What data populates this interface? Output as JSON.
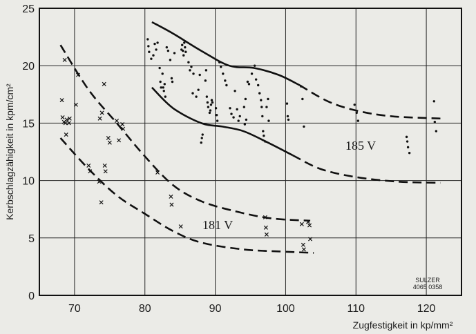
{
  "chart_data": {
    "type": "scatter",
    "xlabel": "Zugfestigkeit in kp/mm²",
    "ylabel": "Kerbschlagzähigkeit in kpm/cm²",
    "xlim": [
      65,
      125
    ],
    "ylim": [
      0,
      25
    ],
    "xticks": [
      "70",
      "80",
      "90",
      "100",
      "110",
      "120"
    ],
    "yticks": [
      "0",
      "5",
      "10",
      "15",
      "20",
      "25"
    ],
    "grid": true,
    "annotations": [
      {
        "text": "185 V",
        "x": 104.5,
        "y": 12.7
      },
      {
        "text": "181 V",
        "x": 86.5,
        "y": 5.9
      }
    ],
    "stamp": {
      "line1": "SULZER",
      "line2": "4065 0358"
    },
    "series": [
      {
        "marker": "x",
        "points": [
          [
            68.2,
            17
          ],
          [
            68.6,
            20.5
          ],
          [
            68.3,
            15.5
          ],
          [
            68.5,
            15.1
          ],
          [
            68.9,
            15.3
          ],
          [
            68.7,
            15
          ],
          [
            68.8,
            14
          ],
          [
            69.2,
            15
          ],
          [
            69.3,
            15.4
          ],
          [
            70.2,
            16.6
          ],
          [
            70.5,
            19.2
          ],
          [
            72,
            11.3
          ],
          [
            72.2,
            10.8
          ],
          [
            73.5,
            9.9
          ],
          [
            73.8,
            8.1
          ],
          [
            74.2,
            18.4
          ],
          [
            73.9,
            15.9
          ],
          [
            73.6,
            15.4
          ],
          [
            74.3,
            11.3
          ],
          [
            74.4,
            10.8
          ],
          [
            74.8,
            13.7
          ],
          [
            75,
            13.3
          ],
          [
            76,
            15.2
          ],
          [
            76.3,
            13.5
          ],
          [
            76.8,
            14.9
          ],
          [
            76.9,
            14.5
          ],
          [
            81.8,
            10.7
          ],
          [
            83.7,
            8.6
          ],
          [
            83.8,
            7.9
          ],
          [
            85.1,
            6
          ],
          [
            97.1,
            6.8
          ],
          [
            97.2,
            5.9
          ],
          [
            97.3,
            5.3
          ],
          [
            102.3,
            6.2
          ],
          [
            102.5,
            4.4
          ],
          [
            102.6,
            4
          ],
          [
            103.2,
            6.4
          ],
          [
            103.4,
            6.1
          ],
          [
            103.5,
            4.9
          ]
        ]
      },
      {
        "marker": "dot",
        "points": [
          [
            80.4,
            22.3
          ],
          [
            80.5,
            21.7
          ],
          [
            80.6,
            21.2
          ],
          [
            80.9,
            20.6
          ],
          [
            81.2,
            20.9
          ],
          [
            81.4,
            21.9
          ],
          [
            81.6,
            21.4
          ],
          [
            81.8,
            22
          ],
          [
            82.1,
            19.8
          ],
          [
            82.2,
            18.6
          ],
          [
            82.3,
            18.1
          ],
          [
            82.5,
            19.3
          ],
          [
            82.6,
            18.1
          ],
          [
            82.7,
            17.8
          ],
          [
            82.8,
            18.4
          ],
          [
            82.9,
            17.3
          ],
          [
            83.1,
            21.6
          ],
          [
            83.3,
            21.3
          ],
          [
            83.6,
            20.5
          ],
          [
            83.8,
            18.9
          ],
          [
            83.9,
            18.6
          ],
          [
            84.2,
            21.1
          ],
          [
            85.2,
            21.4
          ],
          [
            85.3,
            21.8
          ],
          [
            85.4,
            21.3
          ],
          [
            85.5,
            20.9
          ],
          [
            85.6,
            22
          ],
          [
            85.7,
            21.6
          ],
          [
            85.8,
            21.2
          ],
          [
            86.2,
            20.3
          ],
          [
            86.4,
            19.6
          ],
          [
            86.6,
            19.9
          ],
          [
            86.8,
            17.6
          ],
          [
            86.9,
            19.3
          ],
          [
            87.3,
            17.3
          ],
          [
            87.6,
            17.9
          ],
          [
            87.8,
            19.2
          ],
          [
            88.0,
            13.3
          ],
          [
            88.1,
            13.7
          ],
          [
            88.2,
            14
          ],
          [
            88.6,
            18.7
          ],
          [
            88.7,
            19.6
          ],
          [
            88.8,
            17.3
          ],
          [
            88.9,
            16.8
          ],
          [
            89.0,
            16.4
          ],
          [
            89.2,
            15.9
          ],
          [
            89.3,
            16.1
          ],
          [
            89.4,
            16.6
          ],
          [
            89.5,
            17
          ],
          [
            89.6,
            16.8
          ],
          [
            90.1,
            16.3
          ],
          [
            90.2,
            15.7
          ],
          [
            90.3,
            15.2
          ],
          [
            90.6,
            20.3
          ],
          [
            90.8,
            19.9
          ],
          [
            91.1,
            19.3
          ],
          [
            91.4,
            18.7
          ],
          [
            91.6,
            18.3
          ],
          [
            92.1,
            16.3
          ],
          [
            92.3,
            15.8
          ],
          [
            92.6,
            15.5
          ],
          [
            92.8,
            17.8
          ],
          [
            93.1,
            16.2
          ],
          [
            93.3,
            15.2
          ],
          [
            93.5,
            15.6
          ],
          [
            94.2,
            14.9
          ],
          [
            94.4,
            15.3
          ],
          [
            94.1,
            16.4
          ],
          [
            94.3,
            17.1
          ],
          [
            94.6,
            18.6
          ],
          [
            94.8,
            18.4
          ],
          [
            95.2,
            19.3
          ],
          [
            95.6,
            20
          ],
          [
            95.8,
            18.8
          ],
          [
            96.1,
            18.3
          ],
          [
            96.3,
            17.6
          ],
          [
            96.5,
            17
          ],
          [
            96.6,
            16.4
          ],
          [
            96.7,
            15.6
          ],
          [
            96.8,
            14.3
          ],
          [
            96.9,
            13.9
          ],
          [
            97.1,
            13.4
          ],
          [
            97.3,
            16.4
          ],
          [
            97.5,
            17.1
          ],
          [
            97.6,
            15.2
          ],
          [
            100.2,
            16.7
          ],
          [
            100.3,
            15.6
          ],
          [
            100.4,
            15.3
          ],
          [
            102.2,
            18.2
          ],
          [
            102.4,
            17.1
          ],
          [
            102.6,
            14.7
          ],
          [
            109.8,
            16.6
          ],
          [
            110.1,
            15.9
          ],
          [
            110.3,
            15.2
          ],
          [
            117.2,
            13.8
          ],
          [
            117.3,
            13.4
          ],
          [
            117.4,
            12.9
          ],
          [
            117.6,
            12.4
          ],
          [
            121.1,
            16.9
          ],
          [
            121.2,
            15.1
          ],
          [
            121.4,
            14.3
          ]
        ]
      }
    ],
    "curves": [
      {
        "style": "solid",
        "points": [
          [
            81,
            23.8
          ],
          [
            84,
            22.8
          ],
          [
            88,
            21.3
          ],
          [
            92,
            20
          ],
          [
            95.5,
            19.8
          ],
          [
            99,
            19.2
          ],
          [
            102,
            18.3
          ]
        ]
      },
      {
        "style": "dashed",
        "points": [
          [
            102,
            18.3
          ],
          [
            106,
            16.9
          ],
          [
            110,
            16.1
          ],
          [
            115,
            15.6
          ],
          [
            122,
            15.4
          ]
        ]
      },
      {
        "style": "solid",
        "points": [
          [
            81,
            18.1
          ],
          [
            84,
            16.3
          ],
          [
            88,
            15
          ],
          [
            91,
            14.7
          ],
          [
            94,
            14.3
          ],
          [
            97.5,
            13.3
          ],
          [
            101,
            12.2
          ]
        ]
      },
      {
        "style": "dashed",
        "points": [
          [
            101,
            12.2
          ],
          [
            105,
            11
          ],
          [
            110,
            10.3
          ],
          [
            116,
            9.9
          ],
          [
            122,
            9.8
          ]
        ]
      },
      {
        "style": "dashed",
        "points": [
          [
            68,
            21.8
          ],
          [
            72,
            17.9
          ],
          [
            76,
            15
          ],
          [
            80,
            12.1
          ],
          [
            84,
            9.6
          ],
          [
            88,
            8.2
          ],
          [
            93,
            7.3
          ],
          [
            98,
            6.7
          ],
          [
            103.5,
            6.5
          ]
        ]
      },
      {
        "style": "dashed",
        "points": [
          [
            68,
            13.7
          ],
          [
            72,
            11
          ],
          [
            76,
            8.7
          ],
          [
            80,
            7.1
          ],
          [
            84,
            5.6
          ],
          [
            88,
            4.6
          ],
          [
            94,
            4
          ],
          [
            100,
            3.8
          ],
          [
            104,
            3.7
          ]
        ]
      }
    ]
  }
}
